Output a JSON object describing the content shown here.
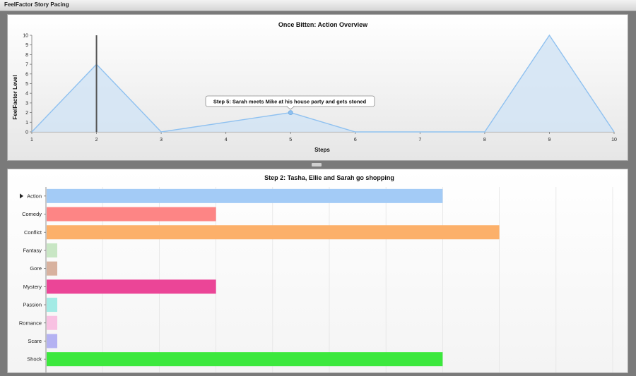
{
  "window": {
    "title": "FeelFactor Story Pacing"
  },
  "top_chart": {
    "title": "Once Bitten: Action Overview",
    "ylabel": "FeelFactor Level",
    "xlabel": "Steps",
    "tooltip": "Step 5:  Sarah meets Mike at his house party and gets stoned"
  },
  "bottom_chart": {
    "title": "Step 2:  Tasha, Ellie and Sarah go shopping"
  },
  "colors": {
    "line": "#8fc1f0",
    "area": "#d2e4f5",
    "marker": "#555555"
  },
  "chart_data": [
    {
      "type": "area",
      "title": "Once Bitten: Action Overview",
      "xlabel": "Steps",
      "ylabel": "FeelFactor Level",
      "x": [
        1,
        2,
        3,
        4,
        5,
        6,
        7,
        8,
        9,
        10
      ],
      "y": [
        0,
        7,
        0,
        1,
        2,
        0,
        0,
        0,
        10,
        0
      ],
      "xlim": [
        1,
        10
      ],
      "ylim": [
        0,
        10
      ],
      "xticks": [
        "1",
        "2",
        "3",
        "4",
        "5",
        "6",
        "7",
        "8",
        "9",
        "10"
      ],
      "yticks": [
        "0",
        "1",
        "2",
        "3",
        "4",
        "5",
        "6",
        "7",
        "8",
        "9",
        "10"
      ],
      "selected_step": 2,
      "highlighted_point": {
        "x": 5,
        "y": 2
      },
      "grid": false
    },
    {
      "type": "bar",
      "orientation": "horizontal",
      "title": "Step 2:  Tasha, Ellie and Sarah go shopping",
      "selected_category": "Action",
      "categories": [
        "Action",
        "Comedy",
        "Conflict",
        "Fantasy",
        "Gore",
        "Mystery",
        "Passion",
        "Romance",
        "Scare",
        "Shock"
      ],
      "values": [
        7,
        3,
        8,
        0.2,
        0.2,
        3,
        0.2,
        0.2,
        0.2,
        7
      ],
      "colors": [
        "#a3cbf6",
        "#fd8585",
        "#fcb06a",
        "#c8e6c4",
        "#d8b29f",
        "#eb4597",
        "#a3ebe5",
        "#f8c1e2",
        "#b4b2f2",
        "#3ce83d"
      ],
      "xlim": [
        0,
        10
      ],
      "grid": true
    }
  ]
}
